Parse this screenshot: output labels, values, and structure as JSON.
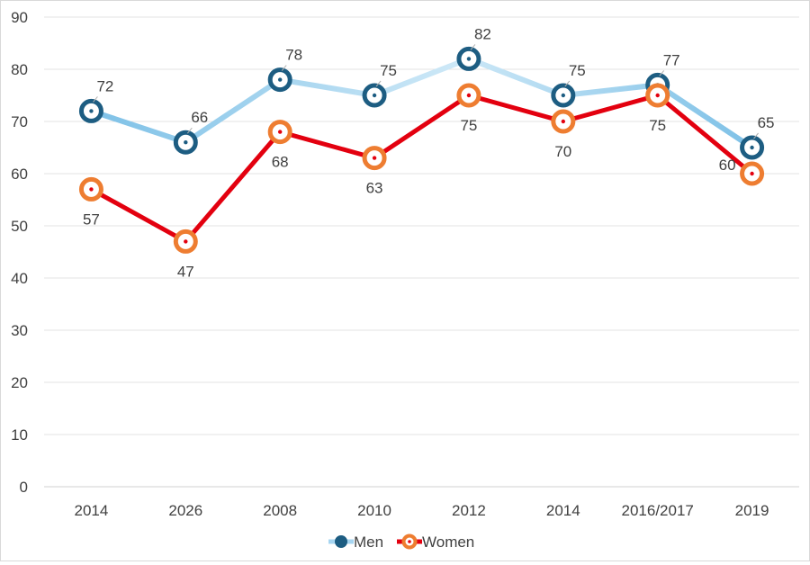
{
  "chart_data": {
    "type": "line",
    "title": "",
    "xlabel": "",
    "ylabel": "",
    "categories": [
      "2014",
      "2026",
      "2008",
      "2010",
      "2012",
      "2014",
      "2016/2017",
      "2019"
    ],
    "ylim": [
      0,
      90
    ],
    "yticks": [
      0,
      10,
      20,
      30,
      40,
      50,
      60,
      70,
      80,
      90
    ],
    "grid": true,
    "legend_position": "bottom",
    "series": [
      {
        "name": "Men",
        "values": [
          72,
          66,
          78,
          75,
          82,
          75,
          77,
          65
        ],
        "line_color": "#7ec1e7",
        "line_color_light": "#c4e3f5",
        "marker_color": "#1d5d82",
        "label_position": [
          "above",
          "above",
          "above",
          "above",
          "above",
          "above",
          "above",
          "above"
        ]
      },
      {
        "name": "Women",
        "values": [
          57,
          47,
          68,
          63,
          75,
          70,
          75,
          60
        ],
        "line_color": "#e3000f",
        "marker_color": "#ee7d31",
        "label_position": [
          "below",
          "below",
          "below",
          "below",
          "below",
          "below",
          "below",
          "left"
        ]
      }
    ]
  }
}
